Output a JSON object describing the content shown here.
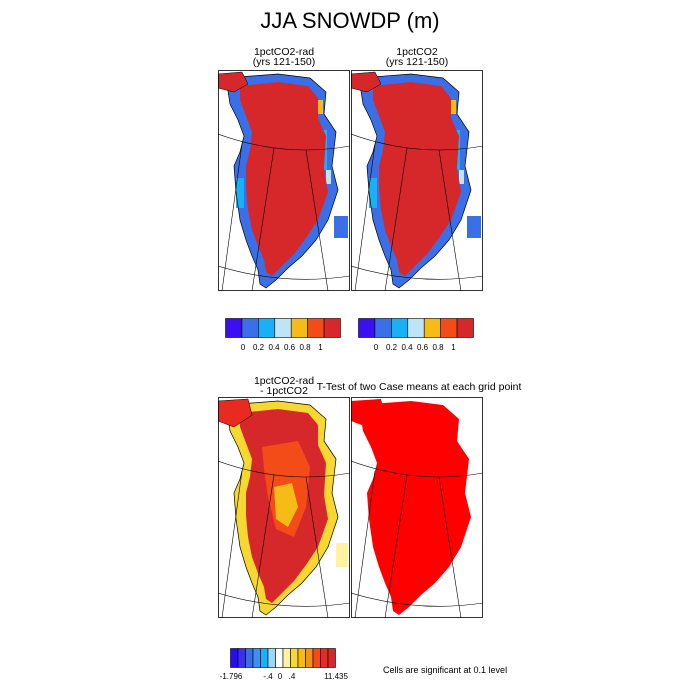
{
  "figure": {
    "title": "JJA SNOWDP (m)"
  },
  "chart_data": [
    {
      "type": "heatmap",
      "title": "1pctCO2-rad",
      "subtitle": "(yrs 121-150)",
      "variable": "JJA SNOWDP (m)",
      "region": "Greenland (polar projection)",
      "colorbar": {
        "tick_labels": [
          "0",
          "0.2",
          "0.4",
          "0.6",
          "0.8",
          "1"
        ],
        "colors": [
          "#3b10f0",
          "#3a6fe8",
          "#18b1f5",
          "#bde5f5",
          "#f6bb17",
          "#f44c18",
          "#d6282a"
        ]
      },
      "summary": {
        "ice_sheet_interior_value": ">1",
        "margin_values": "0-1 (blue/cyan near coast)"
      }
    },
    {
      "type": "heatmap",
      "title": "1pctCO2",
      "subtitle": "(yrs 121-150)",
      "variable": "JJA SNOWDP (m)",
      "region": "Greenland (polar projection)",
      "colorbar": {
        "tick_labels": [
          "0",
          "0.2",
          "0.4",
          "0.6",
          "0.8",
          "1"
        ],
        "colors": [
          "#3b10f0",
          "#3a6fe8",
          "#18b1f5",
          "#bde5f5",
          "#f6bb17",
          "#f44c18",
          "#d6282a"
        ]
      },
      "summary": {
        "ice_sheet_interior_value": ">1",
        "margin_values": "0-1 (blue/cyan near coast)"
      }
    },
    {
      "type": "heatmap",
      "title": "1pctCO2-rad",
      "subtitle": "- 1pctCO2",
      "variable": "difference",
      "colorbar": {
        "tick_labels": [
          "-1.796",
          "-.4",
          "0",
          ".4",
          "11.435"
        ],
        "min": -1.796,
        "max": 11.435,
        "colors": [
          "#2a0cf0",
          "#3a30f0",
          "#3a6ee8",
          "#3d8ff0",
          "#18b1f5",
          "#9ad8f5",
          "#ffffff",
          "#fff3a0",
          "#f6d830",
          "#f6bb17",
          "#f49020",
          "#f44c18",
          "#e82a20",
          "#d6282a"
        ]
      },
      "summary": {
        "interior": "positive (orange/red)",
        "margins": "small positive (yellow)"
      }
    },
    {
      "type": "heatmap",
      "title": "T-Test of two Case means at each grid point",
      "note": "Cells are significant at 0.1 level",
      "significant_color": "#ff0000"
    }
  ]
}
